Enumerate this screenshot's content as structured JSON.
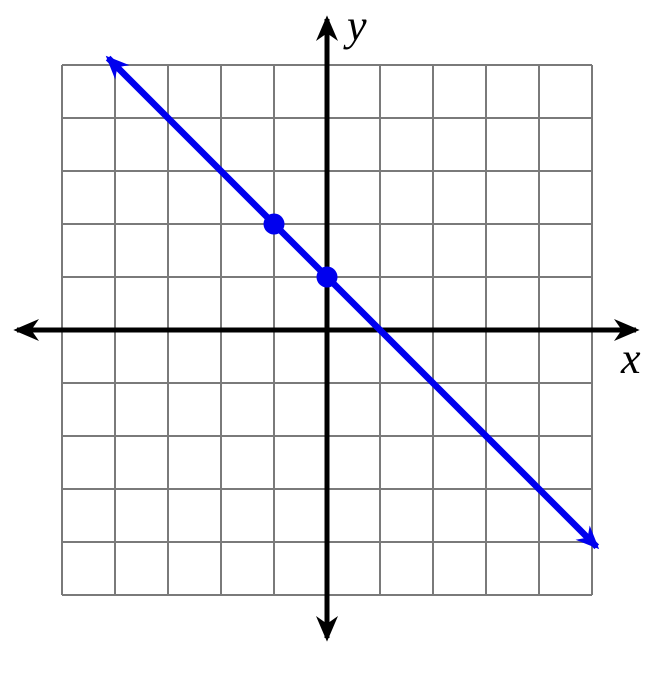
{
  "chart_data": {
    "type": "line",
    "title": "",
    "xlabel": "x",
    "ylabel": "y",
    "xlim": [
      -5,
      5
    ],
    "ylim": [
      -5,
      5
    ],
    "grid": true,
    "grid_step": 1,
    "legend": false,
    "line": {
      "slope": -1,
      "y_intercept": 1,
      "equation": "y = -x + 1",
      "draw_from": {
        "x": -4.13,
        "y": 5.13
      },
      "draw_to": {
        "x": 5.09,
        "y": -4.09
      },
      "arrow_both_ends": true
    },
    "points": [
      {
        "x": -1,
        "y": 2
      },
      {
        "x": 0,
        "y": 1
      }
    ],
    "colors": {
      "line": "#0000ee",
      "point": "#0000ee",
      "axis": "#000000",
      "grid": "#7a7a7a",
      "background": "#ffffff"
    }
  }
}
